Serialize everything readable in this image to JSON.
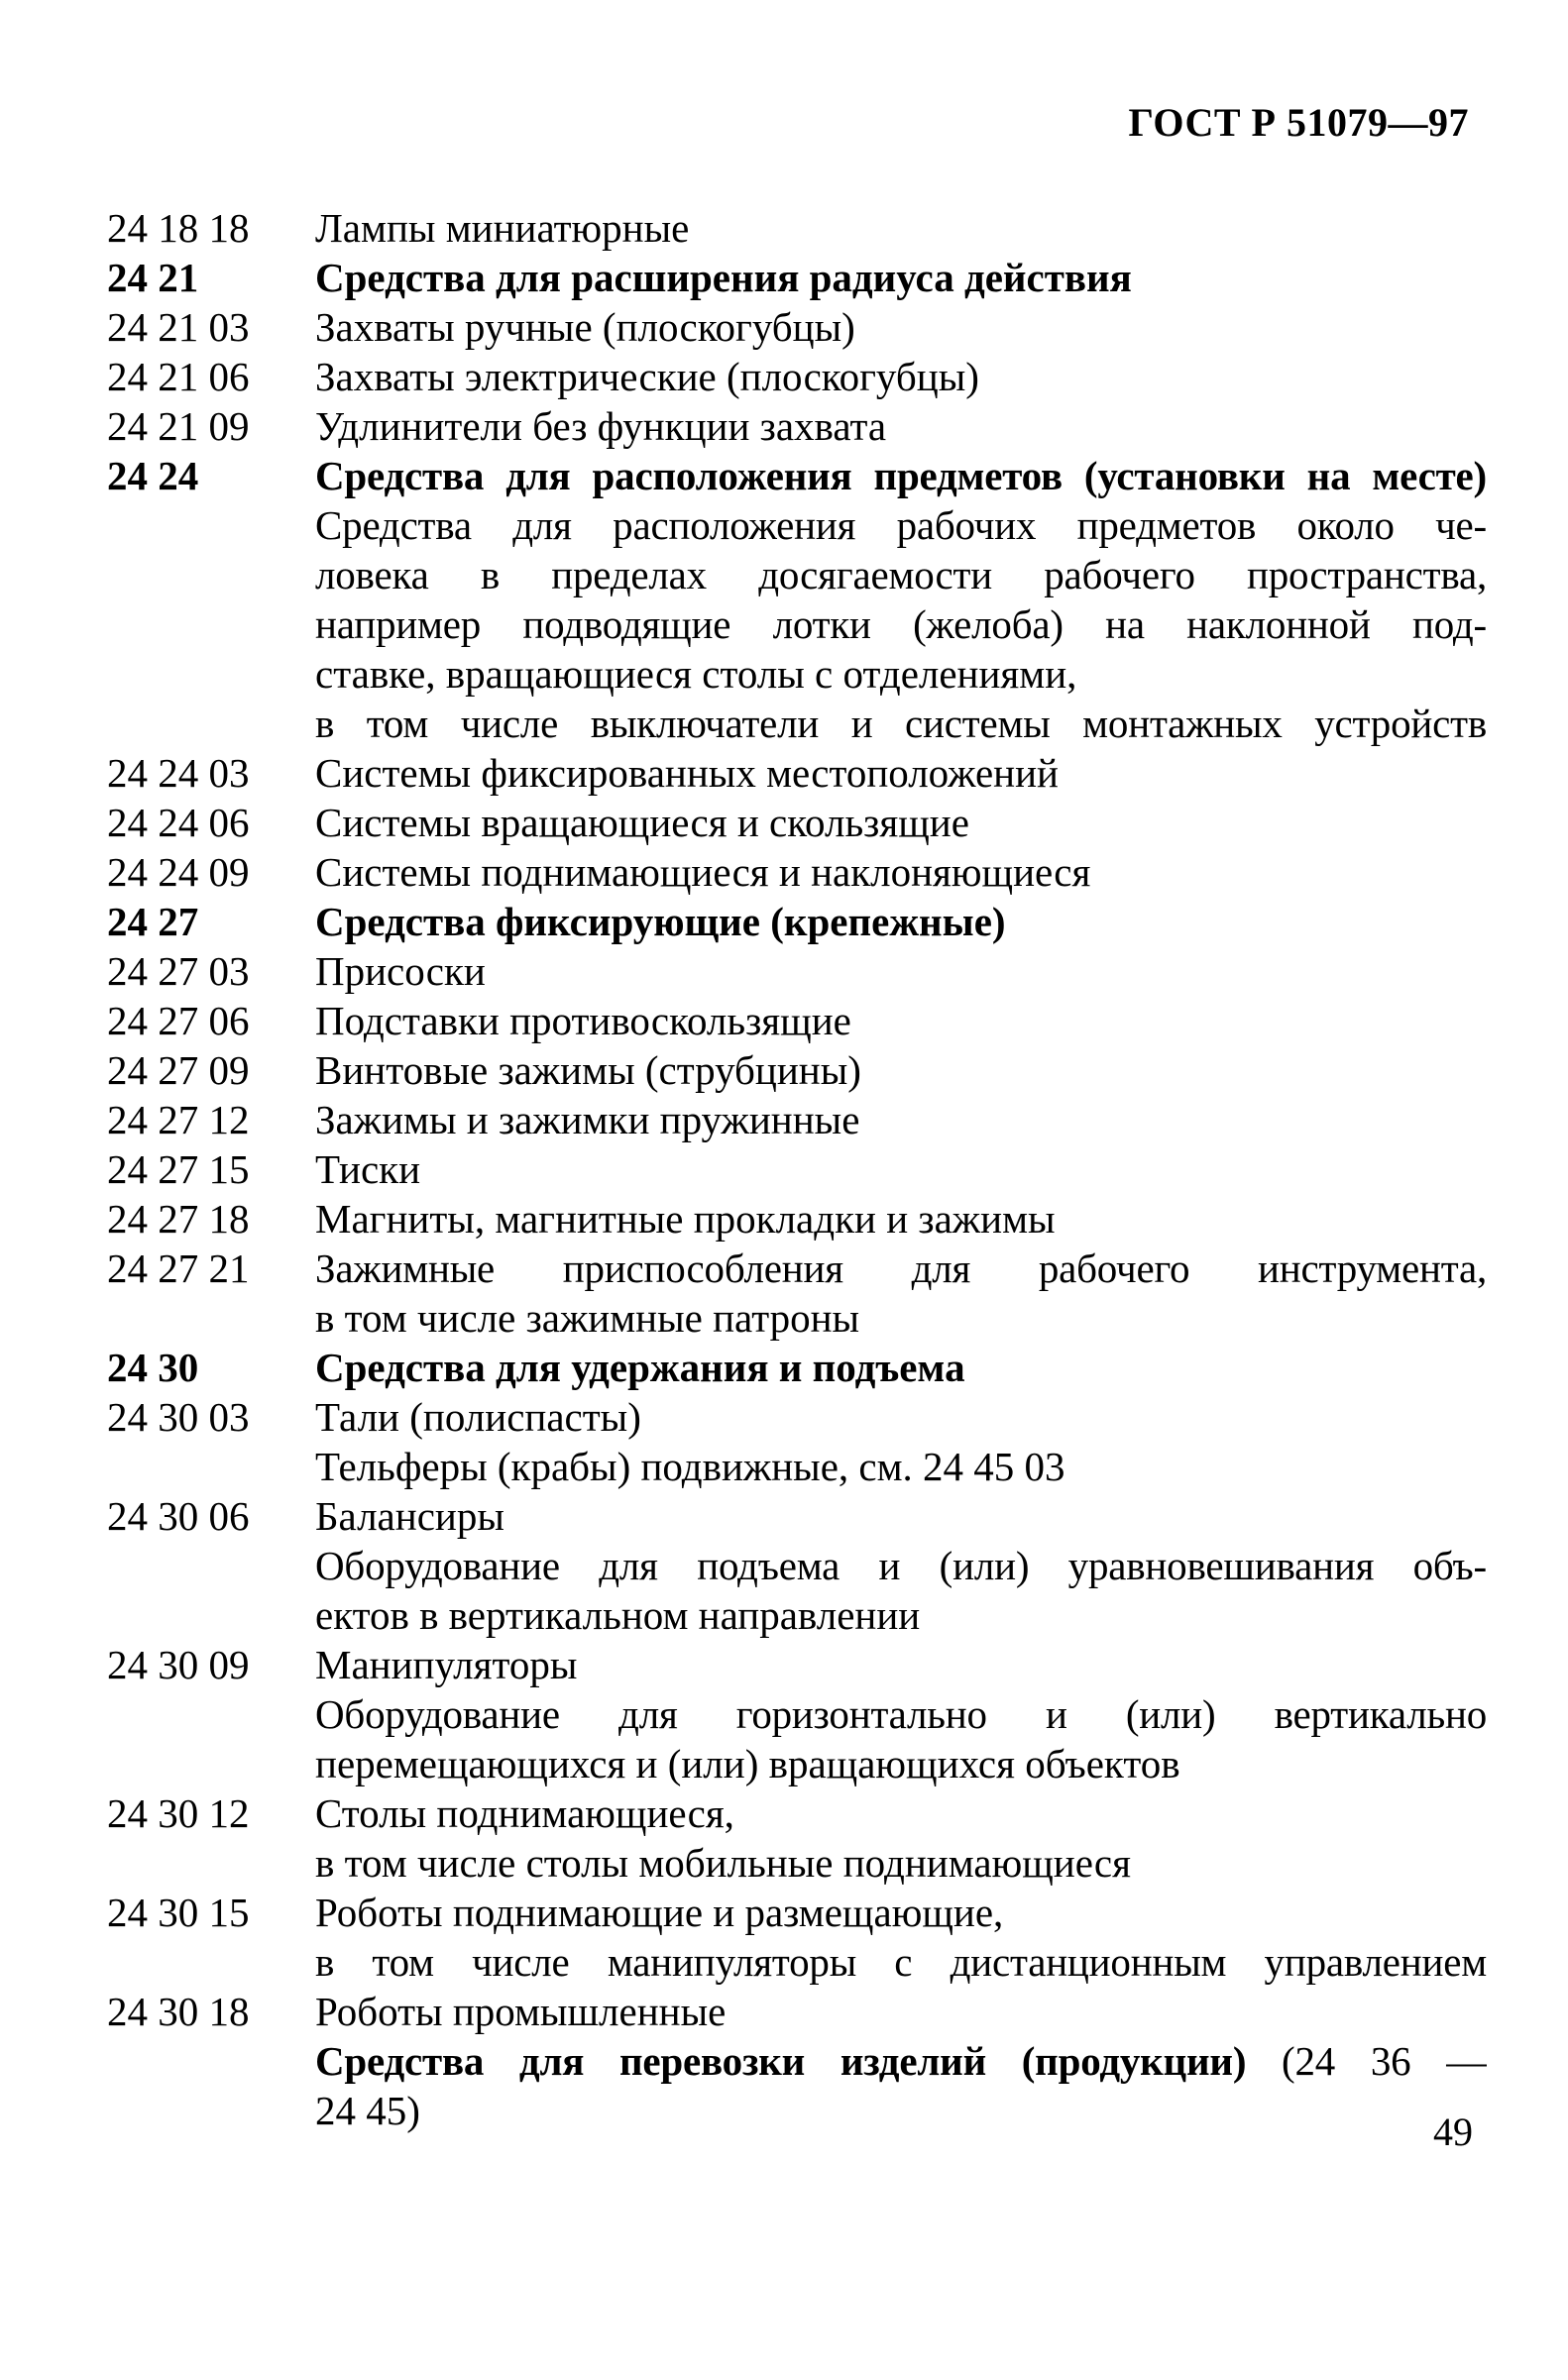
{
  "colors": {
    "ink": "#000000",
    "paper": "#ffffff"
  },
  "header": {
    "doc_number": "ГОСТ Р 51079—97"
  },
  "footer": {
    "page_number": "49"
  },
  "list": {
    "rows": [
      {
        "code": "24 18 18",
        "text": "Лампы миниатюрные",
        "bold": false,
        "justify": false
      },
      {
        "code": "24 21",
        "text": "Средства для расширения радиуса действия",
        "bold": true,
        "justify": false
      },
      {
        "code": "24 21 03",
        "text": "Захваты ручные (плоскогубцы)",
        "bold": false,
        "justify": false
      },
      {
        "code": "24 21 06",
        "text": "Захваты электрические (плоскогубцы)",
        "bold": false,
        "justify": false
      },
      {
        "code": "24 21 09",
        "text": "Удлинители без функции захвата",
        "bold": false,
        "justify": false
      },
      {
        "code": "24 24",
        "text": "Средства для расположения предметов (установки на месте)",
        "bold": true,
        "justify": true
      },
      {
        "code": "",
        "text": "Средства для расположения рабочих предметов около че-",
        "bold": false,
        "justify": true
      },
      {
        "code": "",
        "text": "ловека в пределах досягаемости рабочего пространства,",
        "bold": false,
        "justify": true
      },
      {
        "code": "",
        "text": "например подводящие лотки (желоба) на наклонной под-",
        "bold": false,
        "justify": true
      },
      {
        "code": "",
        "text": "ставке, вращающиеся столы с отделениями,",
        "bold": false,
        "justify": false
      },
      {
        "code": "",
        "text": "в том числе выключатели и системы монтажных устройств",
        "bold": false,
        "justify": true
      },
      {
        "code": "24 24 03",
        "text": "Системы фиксированных местоположений",
        "bold": false,
        "justify": false
      },
      {
        "code": "24 24 06",
        "text": "Системы вращающиеся и скользящие",
        "bold": false,
        "justify": false
      },
      {
        "code": "24 24 09",
        "text": "Системы поднимающиеся и наклоняющиеся",
        "bold": false,
        "justify": false
      },
      {
        "code": "24 27",
        "text": "Средства фиксирующие (крепежные)",
        "bold": true,
        "justify": false
      },
      {
        "code": "24 27 03",
        "text": "Присоски",
        "bold": false,
        "justify": false
      },
      {
        "code": "24 27 06",
        "text": "Подставки противоскользящие",
        "bold": false,
        "justify": false
      },
      {
        "code": "24 27 09",
        "text": "Винтовые зажимы (струбцины)",
        "bold": false,
        "justify": false
      },
      {
        "code": "24 27 12",
        "text": "Зажимы и зажимки пружинные",
        "bold": false,
        "justify": false
      },
      {
        "code": "24 27 15",
        "text": "Тиски",
        "bold": false,
        "justify": false
      },
      {
        "code": "24 27 18",
        "text": "Магниты, магнитные прокладки и зажимы",
        "bold": false,
        "justify": false
      },
      {
        "code": "24 27 21",
        "text": "Зажимные приспособления для рабочего инструмента,",
        "bold": false,
        "justify": true
      },
      {
        "code": "",
        "text": "в том числе зажимные патроны",
        "bold": false,
        "justify": false
      },
      {
        "code": "24 30",
        "text": "Средства для удержания и подъема",
        "bold": true,
        "justify": false
      },
      {
        "code": "24 30 03",
        "text": "Тали (полиспасты)",
        "bold": false,
        "justify": false
      },
      {
        "code": "",
        "text": "Тельферы (крабы) подвижные, см. 24 45 03",
        "bold": false,
        "justify": false
      },
      {
        "code": "24 30 06",
        "text": "Балансиры",
        "bold": false,
        "justify": false
      },
      {
        "code": "",
        "text": "Оборудование для подъема и (или) уравновешивания объ-",
        "bold": false,
        "justify": true
      },
      {
        "code": "",
        "text": "ектов в вертикальном направлении",
        "bold": false,
        "justify": false
      },
      {
        "code": "24 30 09",
        "text": "Манипуляторы",
        "bold": false,
        "justify": false
      },
      {
        "code": "",
        "text": "Оборудование для горизонтально и (или) вертикально",
        "bold": false,
        "justify": true
      },
      {
        "code": "",
        "text": "перемещающихся и (или) вращающихся объектов",
        "bold": false,
        "justify": false
      },
      {
        "code": "24 30 12",
        "text": "Столы поднимающиеся,",
        "bold": false,
        "justify": false
      },
      {
        "code": "",
        "text": "в том числе столы мобильные поднимающиеся",
        "bold": false,
        "justify": false
      },
      {
        "code": "24 30 15",
        "text": "Роботы поднимающие и размещающие,",
        "bold": false,
        "justify": false
      },
      {
        "code": "",
        "text": "в том числе манипуляторы с дистанционным управлением",
        "bold": false,
        "justify": true
      },
      {
        "code": "24 30 18",
        "text": "Роботы промышленные",
        "bold": false,
        "justify": false
      },
      {
        "code": "",
        "parts": [
          {
            "text": "Средства для перевозки изделий (продукции)",
            "bold": true
          },
          {
            "text": " (24 36 —",
            "bold": false
          }
        ],
        "bold": false,
        "justify": true
      },
      {
        "code": "",
        "text": "24 45)",
        "bold": false,
        "justify": false
      }
    ]
  }
}
